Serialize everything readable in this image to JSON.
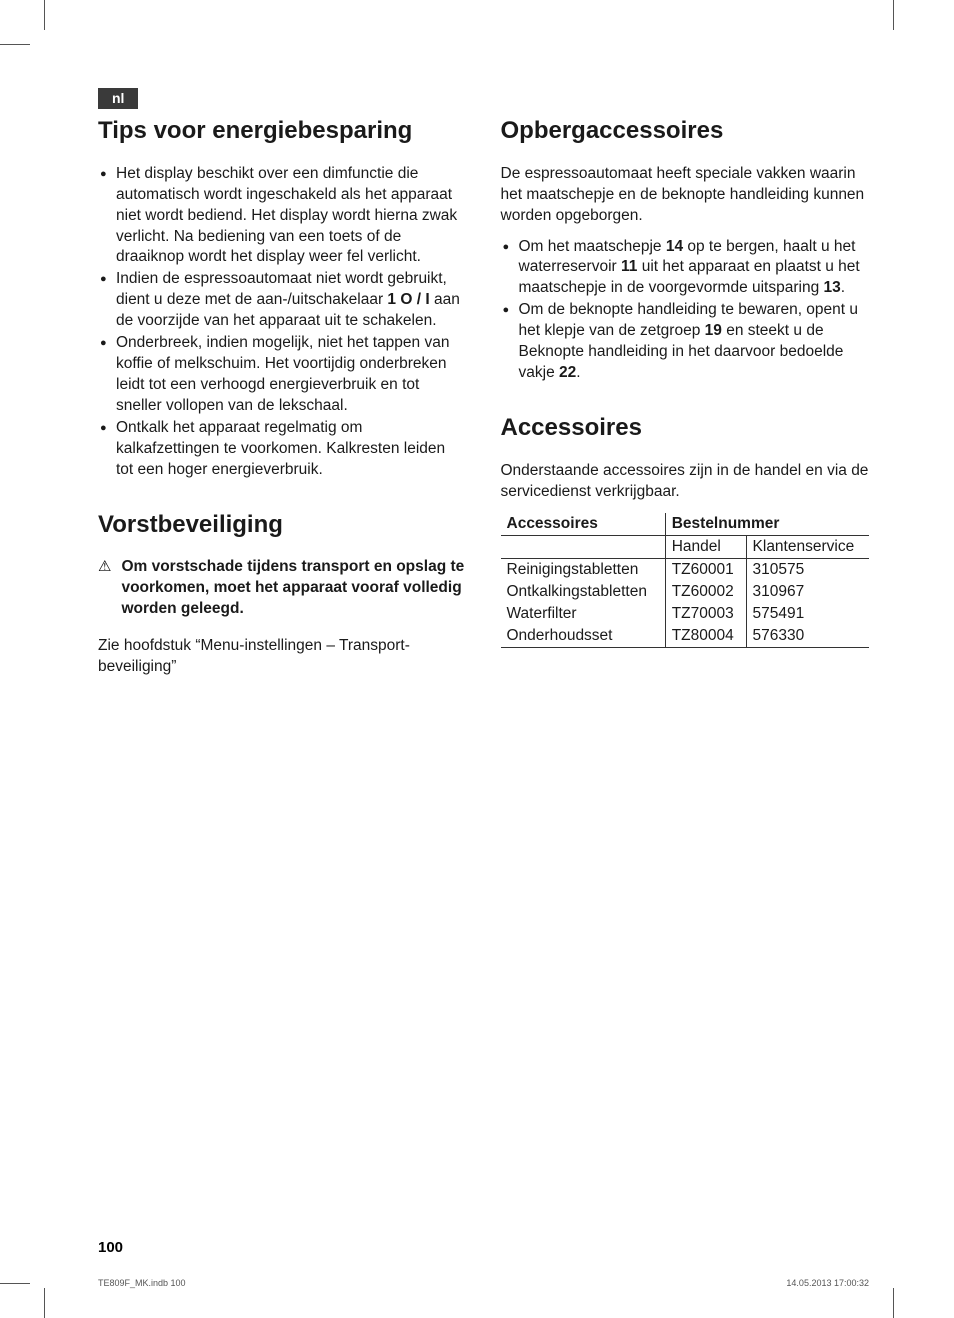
{
  "lang_badge": "nl",
  "page_number": "100",
  "footer": {
    "left": "TE809F_MK.indb   100",
    "right": "14.05.2013   17:00:32"
  },
  "left_col": {
    "h1": "Tips voor energiebesparing",
    "bullets": [
      "Het display beschikt over een dimfunctie die automatisch wordt ingeschakeld als het apparaat niet wordt bediend. Het display wordt hierna zwak verlicht. Na bediening van een toets of de draaiknop wordt het display weer fel verlicht.",
      "Indien de espressoautomaat niet wordt gebruikt, dient u deze met de aan-/uitschakelaar <strong>1 O / I</strong> aan de voorzijde van het apparaat uit te schakelen.",
      "Onderbreek, indien mogelijk, niet het tappen van koffie of melkschuim. Het voortijdig onderbreken leidt tot een verhoogd energieverbruik en tot sneller vollopen van de lekschaal.",
      "Ontkalk het apparaat regelmatig om kalkafzettingen te voorkomen. Kalkresten leiden tot een hoger energieverbruik."
    ],
    "h2": "Vorstbeveiliging",
    "warning": "Om vorstschade tijdens transport en opslag te voorkomen, moet het appa­raat vooraf volledig worden geleegd.",
    "p_after": "Zie hoofdstuk “Menu-instellingen – Transport­beveiliging”"
  },
  "right_col": {
    "h1": "Opbergaccessoires",
    "intro": "De espressoautomaat heeft speciale vakken waarin het maatschepje en de beknopte handleiding kunnen worden opgeborgen.",
    "bullets": [
      "Om het maatschepje <strong>14</strong> op te bergen, haalt u het waterreservoir <strong>11</strong> uit het apparaat en plaatst u het maatschepje in de voorgevormde uitsparing <strong>13</strong>.",
      "Om de beknopte handleiding te bewaren, opent u het klepje van de zetgroep <strong>19</strong> en steekt u de Beknopte handleiding in het daarvoor bedoelde vakje <strong>22</strong>."
    ],
    "h2": "Accessoires",
    "intro2": "Onderstaande accessoires zijn in de handel en via de servicedienst verkrijgbaar.",
    "table": {
      "col1": "Accessoires",
      "col2": "Bestelnummer",
      "sub1": "Handel",
      "sub2": "Klanten­service",
      "rows": [
        [
          "Reinigingstabletten",
          "TZ60001",
          "310575"
        ],
        [
          "Ontkalkingstabletten",
          "TZ60002",
          "310967"
        ],
        [
          "Waterfilter",
          "TZ70003",
          "575491"
        ],
        [
          "Onderhoudsset",
          "TZ80004",
          "576330"
        ]
      ]
    }
  }
}
